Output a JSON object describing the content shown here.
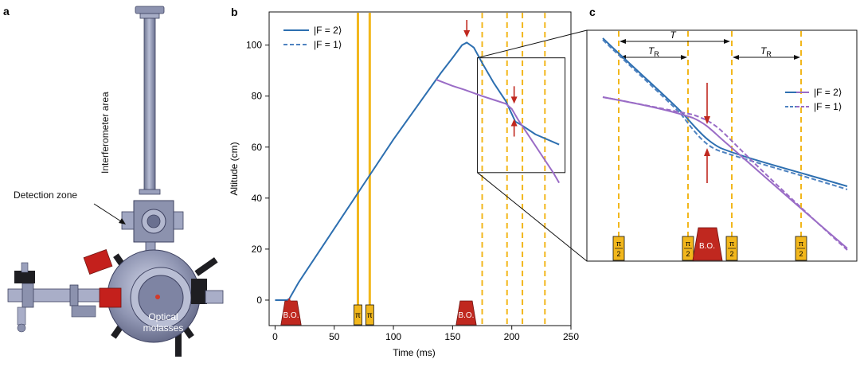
{
  "figure": {
    "panel_labels": {
      "a": "a",
      "b": "b",
      "c": "c"
    },
    "panel_a": {
      "interferometer_label": "Interferometer area",
      "detection_label": "Detection zone",
      "molasses_label_line1": "Optical",
      "molasses_label_line2": "molasses"
    },
    "colors": {
      "f2": "#2d6fb0",
      "f1": "#4e82c0",
      "purple": "#9a6cc6",
      "pulse": "#f2b71c",
      "bo": "#c0281f",
      "arrow": "#c0281f"
    }
  },
  "chart_data": [
    {
      "type": "line",
      "panel": "b",
      "xlabel": "Time (ms)",
      "ylabel": "Altitude (cm)",
      "xlim": [
        -5,
        250
      ],
      "ylim": [
        -10,
        113
      ],
      "xticks": [
        0,
        50,
        100,
        150,
        200,
        250
      ],
      "yticks": [
        0,
        20,
        40,
        60,
        80,
        100
      ],
      "legend": {
        "position": "top-left",
        "entries": [
          "|F = 2⟩",
          "|F = 1⟩"
        ]
      },
      "series": [
        {
          "name": "|F = 2⟩",
          "style": "solid",
          "color": "#2d6fb0",
          "x": [
            0,
            10,
            12,
            20,
            40,
            60,
            80,
            100,
            120,
            140,
            150,
            158,
            162,
            168,
            175,
            185,
            195,
            200,
            203,
            207,
            220,
            240
          ],
          "y": [
            0,
            0,
            0.5,
            7,
            21,
            35,
            49,
            63,
            76,
            89,
            95,
            100,
            101,
            99,
            93,
            85,
            78,
            73,
            70,
            69,
            65,
            61
          ]
        },
        {
          "name": "",
          "style": "solid",
          "color": "#9a6cc6",
          "x": [
            136,
            150,
            160,
            175,
            185,
            195,
            200,
            205,
            215,
            225,
            235,
            240
          ],
          "y": [
            86.5,
            84,
            82.5,
            80,
            78.5,
            77,
            75,
            71,
            64,
            57,
            50,
            46
          ]
        }
      ],
      "pulses": [
        {
          "label": "π",
          "t": 70
        },
        {
          "label": "π",
          "t": 80
        }
      ],
      "dashed_lines_t": [
        175,
        196,
        209,
        228
      ],
      "bo_blocks": [
        {
          "label": "B.O.",
          "t_start": 5,
          "t_end": 22
        },
        {
          "label": "B.O.",
          "t_start": 153,
          "t_end": 170
        }
      ],
      "arrows": [
        {
          "t": 12,
          "alt": 1,
          "direction": "up"
        },
        {
          "t": 162,
          "alt": 103,
          "direction": "down"
        },
        {
          "t": 202,
          "alt": 77,
          "direction": "down"
        },
        {
          "t": 202,
          "alt": 71,
          "direction": "up"
        }
      ],
      "inset_box": {
        "x": [
          171,
          245
        ],
        "y": [
          50,
          95
        ]
      }
    },
    {
      "type": "line",
      "panel": "c",
      "legend": {
        "position": "right",
        "entries": [
          "|F = 2⟩",
          "|F = 1⟩"
        ]
      },
      "annotations": [
        "T",
        "T_R",
        "T_R"
      ],
      "pulse_labels": [
        "π/2",
        "π/2",
        "π/2",
        "π/2"
      ],
      "bo_label": "B.O."
    }
  ]
}
